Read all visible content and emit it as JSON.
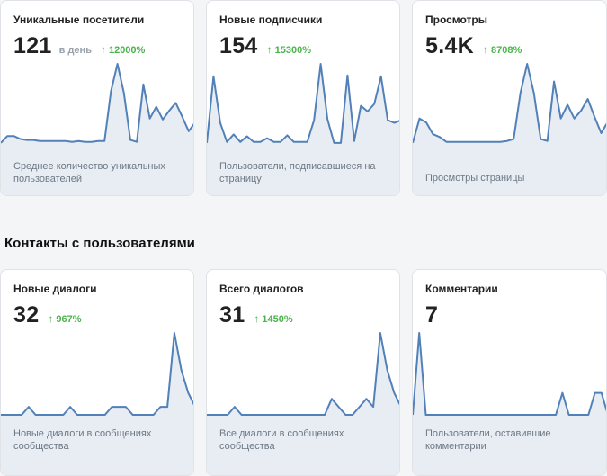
{
  "section": {
    "title": "Контакты с пользователями"
  },
  "cards": [
    {
      "title": "Уникальные посетители",
      "value": "121",
      "suffix": "в день",
      "delta": "12000%",
      "desc": "Среднее количество уникальных пользователей",
      "series": [
        0.2,
        0.9,
        0.9,
        0.6,
        0.5,
        0.5,
        0.4,
        0.4,
        0.4,
        0.4,
        0.4,
        0.3,
        0.4,
        0.3,
        0.3,
        0.4,
        0.4,
        5.5,
        8.3,
        5.3,
        0.5,
        0.3,
        6.2,
        2.7,
        3.9,
        2.6,
        3.5,
        4.3,
        2.9,
        1.4,
        2.3
      ],
      "stroke": "#5181b8",
      "fill": "#e8edf3"
    },
    {
      "title": "Новые подписчики",
      "value": "154",
      "suffix": "",
      "delta": "15300%",
      "desc": "Пользователи, подписавшиеся на страницу",
      "series": [
        0.2,
        7.2,
        2.3,
        0.3,
        1.1,
        0.3,
        0.9,
        0.3,
        0.3,
        0.7,
        0.3,
        0.3,
        1.0,
        0.3,
        0.3,
        0.3,
        2.6,
        8.5,
        2.7,
        0.2,
        0.2,
        7.3,
        0.4,
        4.1,
        3.5,
        4.3,
        7.2,
        2.6,
        2.3,
        2.6
      ],
      "stroke": "#5181b8",
      "fill": "#e8edf3"
    },
    {
      "title": "Просмотры",
      "value": "5.4K",
      "suffix": "",
      "delta": "8708%",
      "desc": "Просмотры страницы",
      "series": [
        0.2,
        2.7,
        2.3,
        1.1,
        0.8,
        0.3,
        0.3,
        0.3,
        0.3,
        0.3,
        0.3,
        0.3,
        0.3,
        0.3,
        0.4,
        0.6,
        5.3,
        8.3,
        5.3,
        0.6,
        0.4,
        6.5,
        2.7,
        4.1,
        2.7,
        3.5,
        4.7,
        2.9,
        1.2,
        2.4
      ],
      "stroke": "#5181b8",
      "fill": "#e8edf3"
    },
    {
      "title": "Новые диалоги",
      "value": "32",
      "suffix": "",
      "delta": "967%",
      "desc": "Новые диалоги в сообщениях сообщества",
      "series": [
        0.0,
        0.0,
        0.0,
        0.0,
        0.8,
        0.0,
        0.0,
        0.0,
        0.0,
        0.0,
        0.8,
        0.0,
        0.0,
        0.0,
        0.0,
        0.0,
        0.8,
        0.8,
        0.8,
        0.0,
        0.0,
        0.0,
        0.0,
        0.8,
        0.8,
        8.2,
        4.5,
        2.2,
        0.8
      ],
      "stroke": "#5181b8",
      "fill": "#e8edf3"
    },
    {
      "title": "Всего диалогов",
      "value": "31",
      "suffix": "",
      "delta": "1450%",
      "desc": "Все диалоги в сообщениях сообщества",
      "series": [
        0.0,
        0.0,
        0.0,
        0.0,
        0.8,
        0.0,
        0.0,
        0.0,
        0.0,
        0.0,
        0.0,
        0.0,
        0.0,
        0.0,
        0.0,
        0.0,
        0.0,
        0.0,
        1.6,
        0.8,
        0.0,
        0.0,
        0.8,
        1.6,
        0.8,
        8.2,
        4.5,
        2.2,
        0.8
      ],
      "stroke": "#5181b8",
      "fill": "#e8edf3"
    },
    {
      "title": "Комментарии",
      "value": "7",
      "suffix": "",
      "delta": "",
      "desc": "Пользователи, оставившие комментарии",
      "series": [
        0.0,
        8.2,
        0.0,
        0.0,
        0.0,
        0.0,
        0.0,
        0.0,
        0.0,
        0.0,
        0.0,
        0.0,
        0.0,
        0.0,
        0.0,
        0.0,
        0.0,
        0.0,
        0.0,
        0.0,
        0.0,
        0.0,
        0.0,
        2.2,
        0.0,
        0.0,
        0.0,
        0.0,
        2.2,
        2.2,
        0.0
      ],
      "stroke": "#5181b8",
      "fill": "#e8edf3"
    }
  ]
}
